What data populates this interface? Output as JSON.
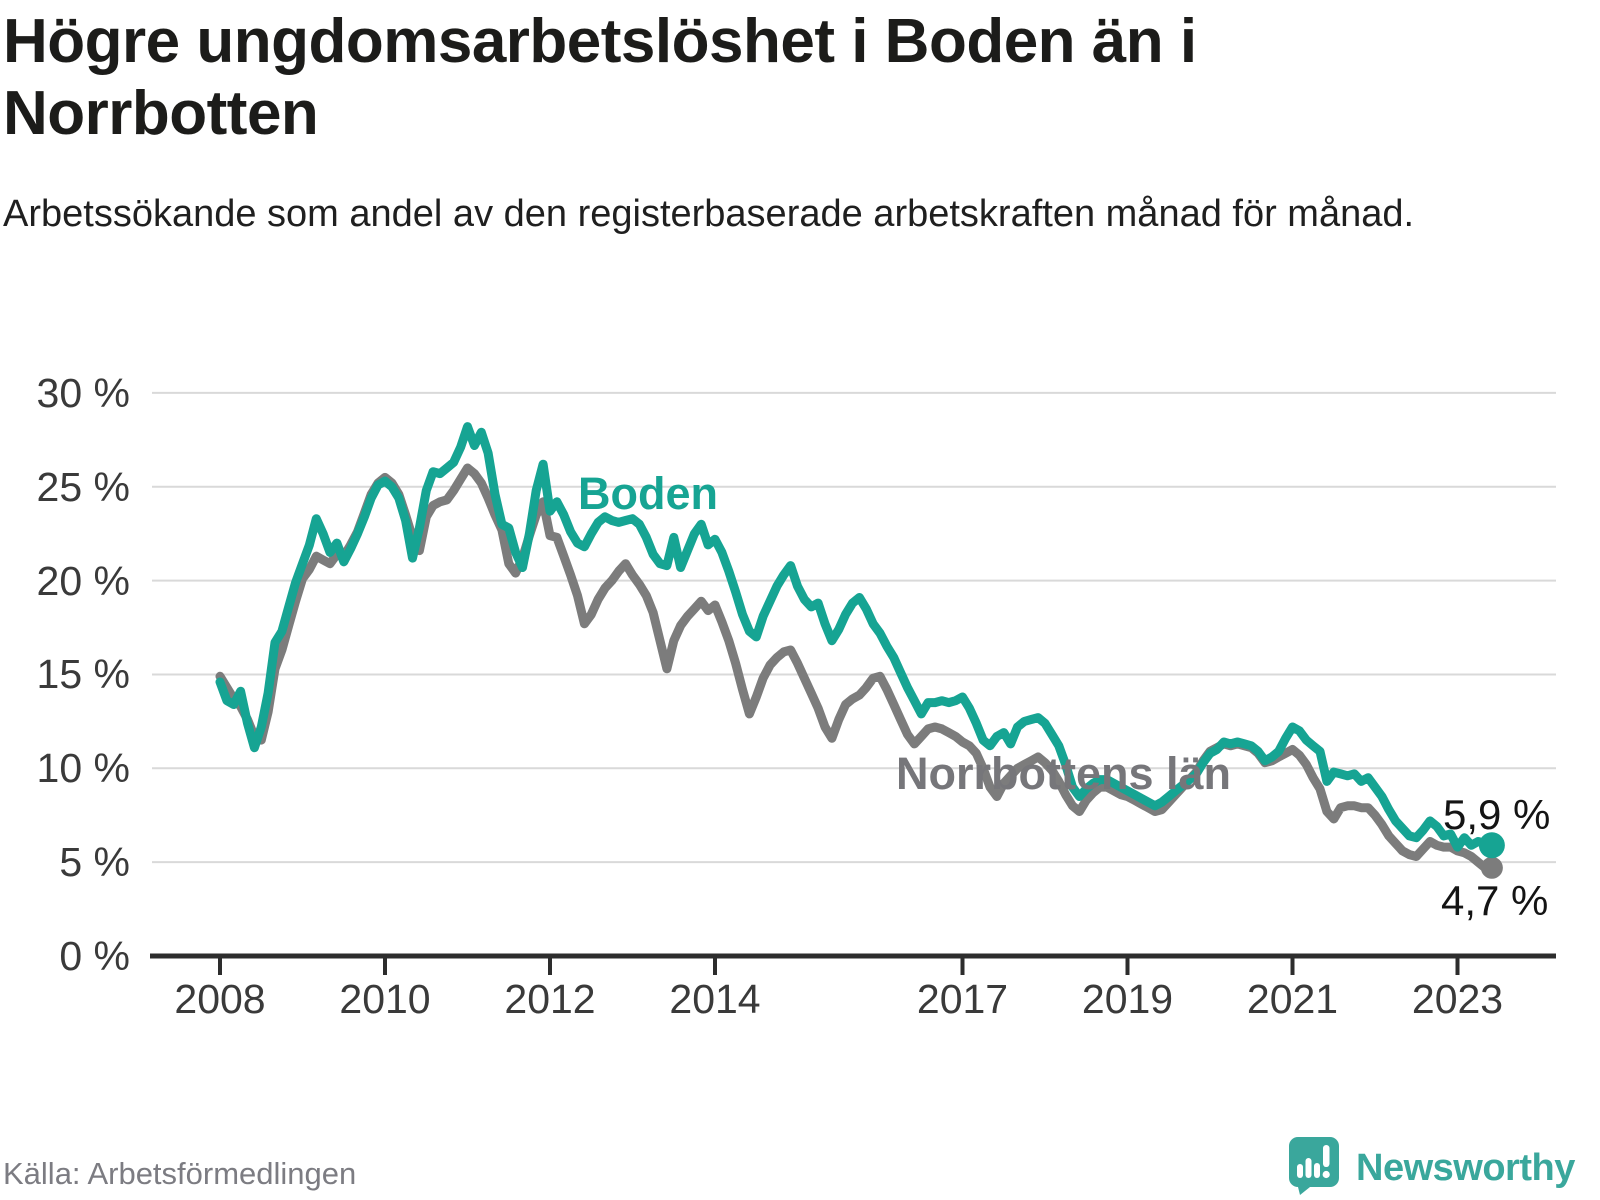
{
  "title": "Högre ungdomsarbetslöshet i Boden än i Norrbotten",
  "subtitle": "Arbetssökande som andel av den registerbaserade arbetskraften månad för månad.",
  "source": "Källa: Arbetsförmedlingen",
  "branding": {
    "name": "Newsworthy",
    "icon": "speech-bubble-bar-chart-icon",
    "color": "#3aa79c"
  },
  "colors": {
    "boden": "#16a493",
    "norrbotten": "#7c7c7c",
    "norrbotten_label": "#76767a",
    "grid": "#d9d9d9",
    "axis": "#2d2d2d",
    "tick_label": "#3a3a3a"
  },
  "chart_data": {
    "type": "line",
    "title": "Högre ungdomsarbetslöshet i Boden än i Norrbotten",
    "ylabel": "",
    "xlabel": "",
    "grid": "horizontal",
    "y_axis": {
      "tick_values": [
        0,
        5,
        10,
        15,
        20,
        25,
        30
      ],
      "tick_labels": [
        "0 %",
        "5 %",
        "10 %",
        "15 %",
        "20 %",
        "25 %",
        "30 %"
      ],
      "range": [
        0,
        30
      ]
    },
    "x_axis": {
      "tick_years": [
        2008,
        2010,
        2012,
        2014,
        2017,
        2019,
        2021,
        2023
      ],
      "range": [
        2007.7,
        2023.8
      ]
    },
    "series": [
      {
        "name": "Boden",
        "end_label": "5,9 %",
        "end_value": 5.9,
        "start": "2008-01",
        "frequency": "monthly",
        "monthly_values": [
          14.6,
          13.6,
          13.4,
          14.1,
          12.4,
          11.1,
          12.2,
          14.0,
          16.7,
          17.3,
          18.6,
          19.9,
          20.9,
          21.9,
          23.3,
          22.5,
          21.5,
          22.0,
          21.0,
          21.7,
          22.5,
          23.4,
          24.4,
          25.1,
          25.3,
          25.0,
          24.4,
          23.2,
          21.2,
          22.8,
          24.8,
          25.8,
          25.7,
          26.0,
          26.3,
          27.1,
          28.2,
          27.2,
          27.9,
          26.8,
          24.6,
          23.0,
          22.8,
          21.5,
          20.7,
          22.5,
          24.8,
          26.2,
          23.7,
          24.2,
          23.5,
          22.6,
          22.0,
          21.8,
          22.5,
          23.1,
          23.4,
          23.2,
          23.1,
          23.2,
          23.3,
          23.0,
          22.3,
          21.4,
          20.9,
          20.8,
          22.3,
          20.7,
          21.6,
          22.5,
          23.0,
          21.9,
          22.2,
          21.5,
          20.5,
          19.4,
          18.2,
          17.3,
          17.0,
          18.1,
          18.9,
          19.7,
          20.3,
          20.8,
          19.7,
          19.0,
          18.6,
          18.8,
          17.7,
          16.8,
          17.4,
          18.2,
          18.8,
          19.1,
          18.5,
          17.7,
          17.2,
          16.5,
          15.9,
          15.1,
          14.3,
          13.6,
          12.9,
          13.5,
          13.5,
          13.6,
          13.5,
          13.6,
          13.8,
          13.2,
          12.4,
          11.5,
          11.2,
          11.7,
          11.9,
          11.3,
          12.2,
          12.5,
          12.6,
          12.7,
          12.4,
          11.8,
          11.2,
          10.2,
          9.0,
          8.5,
          8.9,
          9.2,
          9.4,
          9.4,
          9.2,
          9.0,
          8.8,
          8.6,
          8.4,
          8.2,
          8.0,
          8.2,
          8.5,
          8.8,
          9.1,
          9.4,
          9.7,
          10.3,
          10.8,
          11.0,
          11.4,
          11.3,
          11.4,
          11.3,
          11.2,
          10.9,
          10.4,
          10.6,
          10.9,
          11.6,
          12.2,
          12.0,
          11.5,
          11.2,
          10.9,
          9.3,
          9.8,
          9.7,
          9.6,
          9.7,
          9.3,
          9.5,
          9.0,
          8.5,
          7.8,
          7.2,
          6.8,
          6.4,
          6.3,
          6.7,
          7.2,
          6.9,
          6.4,
          6.5,
          5.8,
          6.3,
          5.9,
          6.1,
          6.0,
          5.9
        ]
      },
      {
        "name": "Norrbottens län",
        "end_label": "4,7 %",
        "end_value": 4.7,
        "start": "2008-01",
        "frequency": "monthly",
        "monthly_values": [
          14.9,
          14.3,
          13.7,
          13.3,
          12.6,
          11.7,
          11.5,
          13.0,
          15.3,
          16.3,
          17.6,
          18.9,
          20.1,
          20.6,
          21.3,
          21.1,
          20.9,
          21.4,
          21.3,
          21.9,
          22.6,
          23.6,
          24.6,
          25.2,
          25.5,
          25.2,
          24.6,
          23.5,
          22.3,
          21.6,
          23.4,
          24.0,
          24.2,
          24.3,
          24.8,
          25.4,
          26.0,
          25.7,
          25.2,
          24.4,
          23.5,
          22.7,
          20.9,
          20.4,
          21.2,
          22.4,
          23.5,
          24.2,
          22.4,
          22.3,
          21.3,
          20.3,
          19.2,
          17.7,
          18.2,
          19.0,
          19.6,
          20.0,
          20.5,
          20.9,
          20.3,
          19.8,
          19.2,
          18.3,
          16.8,
          15.3,
          16.8,
          17.6,
          18.1,
          18.5,
          18.9,
          18.4,
          18.7,
          17.8,
          16.8,
          15.6,
          14.2,
          12.9,
          13.8,
          14.8,
          15.5,
          15.9,
          16.2,
          16.3,
          15.6,
          14.8,
          14.0,
          13.2,
          12.2,
          11.6,
          12.6,
          13.4,
          13.7,
          13.9,
          14.3,
          14.8,
          14.9,
          14.2,
          13.4,
          12.6,
          11.8,
          11.3,
          11.7,
          12.1,
          12.2,
          12.1,
          11.9,
          11.7,
          11.4,
          11.2,
          10.8,
          10.0,
          9.0,
          8.5,
          9.2,
          9.6,
          10.0,
          10.2,
          10.4,
          10.6,
          10.3,
          9.9,
          9.3,
          8.6,
          8.0,
          7.7,
          8.3,
          8.7,
          9.0,
          9.0,
          8.8,
          8.6,
          8.5,
          8.3,
          8.1,
          7.9,
          7.7,
          7.8,
          8.2,
          8.6,
          9.0,
          9.4,
          9.8,
          10.4,
          10.9,
          11.1,
          11.3,
          11.2,
          11.3,
          11.2,
          11.1,
          10.8,
          10.3,
          10.4,
          10.6,
          10.8,
          11.0,
          10.7,
          10.2,
          9.5,
          8.9,
          7.7,
          7.3,
          7.9,
          8.0,
          8.0,
          7.9,
          7.9,
          7.5,
          7.0,
          6.4,
          6.0,
          5.6,
          5.4,
          5.3,
          5.7,
          6.1,
          5.9,
          5.8,
          5.8,
          5.6,
          5.5,
          5.3,
          5.0,
          4.7,
          4.7
        ]
      }
    ]
  }
}
